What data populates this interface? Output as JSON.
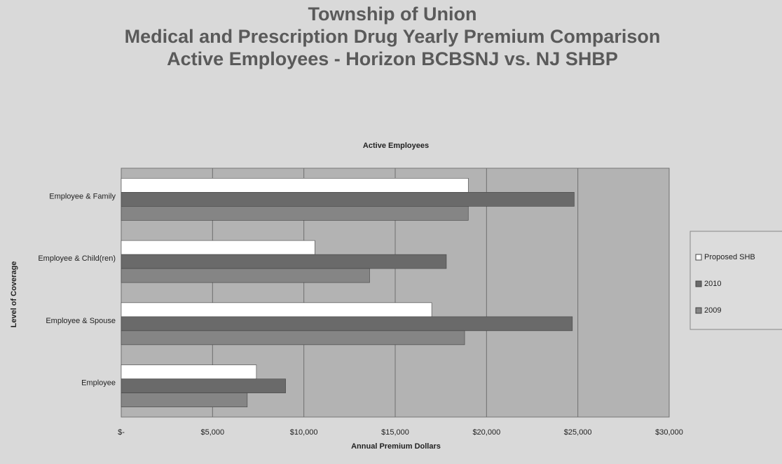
{
  "chart_data": {
    "type": "bar",
    "orientation": "horizontal",
    "titles": [
      "Township of Union",
      "Medical and Prescription Drug Yearly Premium Comparison",
      "Active Employees - Horizon BCBSNJ vs. NJ SHBP"
    ],
    "title": "Active Employees",
    "y_label": "Level of Coverage",
    "x_label": "Annual Premium Dollars",
    "categories": [
      "Employee & Family",
      "Employee & Child(ren)",
      "Employee & Spouse",
      "Employee"
    ],
    "series": [
      {
        "name": "Proposed SHB",
        "color": "#ffffff",
        "values": [
          19000,
          10600,
          17000,
          7400
        ]
      },
      {
        "name": "2010",
        "color": "#6a6a6a",
        "values": [
          24800,
          17800,
          24700,
          9000
        ]
      },
      {
        "name": "2009",
        "color": "#858585",
        "values": [
          19000,
          13600,
          18800,
          6900
        ]
      }
    ],
    "xlim": [
      0,
      30000
    ],
    "xticks": [
      {
        "value": 0,
        "label": "$-"
      },
      {
        "value": 5000,
        "label": "$5,000"
      },
      {
        "value": 10000,
        "label": "$10,000"
      },
      {
        "value": 15000,
        "label": "$15,000"
      },
      {
        "value": 20000,
        "label": "$20,000"
      },
      {
        "value": 25000,
        "label": "$25,000"
      },
      {
        "value": 30000,
        "label": "$30,000"
      }
    ],
    "grid": true,
    "legend": "right"
  }
}
